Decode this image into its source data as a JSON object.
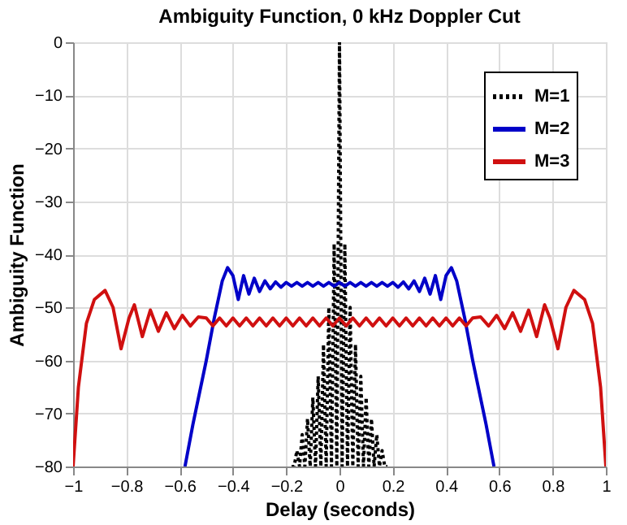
{
  "chart_data": {
    "type": "line",
    "title": "Ambiguity Function, 0 kHz Doppler Cut",
    "xlabel": "Delay (seconds)",
    "ylabel": "Ambiguity Function",
    "xlim": [
      -1,
      1
    ],
    "xticks": [
      -1,
      -0.8,
      -0.6,
      -0.4,
      -0.2,
      0,
      0.2,
      0.4,
      0.6,
      0.8,
      1
    ],
    "ylim": [
      -80,
      0
    ],
    "yticks": [
      -80,
      -70,
      -60,
      -50,
      -40,
      -30,
      -20,
      -10,
      0
    ],
    "grid": true,
    "legend": "top right",
    "series": [
      {
        "name": "M=1",
        "color": "#000000",
        "line_style": "dotted",
        "x": [
          -0.18,
          -0.17,
          -0.16,
          -0.15,
          -0.14,
          -0.13,
          -0.12,
          -0.11,
          -0.1,
          -0.09,
          -0.08,
          -0.07,
          -0.06,
          -0.05,
          -0.04,
          -0.03,
          -0.02,
          -0.01,
          0,
          0.01,
          0.02,
          0.03,
          0.04,
          0.05,
          0.06,
          0.07,
          0.08,
          0.09,
          0.1,
          0.11,
          0.12,
          0.13,
          0.14,
          0.15,
          0.16,
          0.17,
          0.18
        ],
        "values": [
          -80,
          -80,
          -77,
          -80,
          -74,
          -80,
          -71,
          -80,
          -67,
          -80,
          -63,
          -80,
          -57,
          -80,
          -50,
          -80,
          -38,
          -80,
          0,
          -80,
          -38,
          -80,
          -50,
          -80,
          -57,
          -80,
          -63,
          -80,
          -67,
          -80,
          -71,
          -80,
          -74,
          -80,
          -77,
          -80,
          -80
        ]
      },
      {
        "name": "M=2",
        "color": "#0000c8",
        "line_style": "solid",
        "x": [
          -0.58,
          -0.55,
          -0.5,
          -0.47,
          -0.44,
          -0.42,
          -0.4,
          -0.38,
          -0.36,
          -0.34,
          -0.32,
          -0.3,
          -0.28,
          -0.26,
          -0.24,
          -0.22,
          -0.2,
          -0.18,
          -0.16,
          -0.14,
          -0.12,
          -0.1,
          -0.08,
          -0.06,
          -0.04,
          -0.02,
          0,
          0.02,
          0.04,
          0.06,
          0.08,
          0.1,
          0.12,
          0.14,
          0.16,
          0.18,
          0.2,
          0.22,
          0.24,
          0.26,
          0.28,
          0.3,
          0.32,
          0.34,
          0.36,
          0.38,
          0.4,
          0.42,
          0.44,
          0.47,
          0.5,
          0.55,
          0.58
        ],
        "values": [
          -80,
          -72,
          -60,
          -52,
          -45,
          -42.5,
          -44,
          -48.5,
          -44,
          -47.5,
          -44.5,
          -47,
          -45,
          -46.5,
          -45.2,
          -46.2,
          -45.3,
          -46,
          -45.3,
          -46,
          -45.3,
          -46,
          -45.3,
          -46,
          -45.3,
          -46,
          -45.3,
          -46,
          -45.3,
          -46,
          -45.3,
          -46,
          -45.3,
          -46,
          -45.3,
          -46,
          -45.3,
          -46.2,
          -45.2,
          -46.5,
          -45,
          -47,
          -44.5,
          -47.5,
          -44,
          -48.5,
          -44,
          -42.5,
          -45,
          -52,
          -60,
          -72,
          -80
        ]
      },
      {
        "name": "M=3",
        "color": "#d01010",
        "line_style": "solid",
        "x": [
          -1,
          -0.98,
          -0.95,
          -0.92,
          -0.88,
          -0.85,
          -0.82,
          -0.79,
          -0.77,
          -0.74,
          -0.71,
          -0.68,
          -0.65,
          -0.62,
          -0.59,
          -0.56,
          -0.53,
          -0.5,
          -0.475,
          -0.45,
          -0.425,
          -0.4,
          -0.375,
          -0.35,
          -0.325,
          -0.3,
          -0.275,
          -0.25,
          -0.225,
          -0.2,
          -0.175,
          -0.15,
          -0.125,
          -0.1,
          -0.075,
          -0.05,
          -0.025,
          0,
          0.025,
          0.05,
          0.075,
          0.1,
          0.125,
          0.15,
          0.175,
          0.2,
          0.225,
          0.25,
          0.275,
          0.3,
          0.325,
          0.35,
          0.375,
          0.4,
          0.425,
          0.45,
          0.475,
          0.5,
          0.53,
          0.56,
          0.59,
          0.62,
          0.65,
          0.68,
          0.71,
          0.74,
          0.77,
          0.79,
          0.82,
          0.85,
          0.88,
          0.92,
          0.95,
          0.98,
          1
        ],
        "values": [
          -80,
          -65,
          -53,
          -48.5,
          -46.8,
          -50,
          -57.8,
          -52,
          -49.5,
          -55.5,
          -50.5,
          -54.5,
          -51,
          -54,
          -51.5,
          -53.5,
          -51.8,
          -52,
          -53.5,
          -52,
          -53.5,
          -52,
          -53.5,
          -52,
          -53.5,
          -52,
          -53.5,
          -52,
          -53.5,
          -52,
          -53.5,
          -52,
          -53.5,
          -52,
          -53.5,
          -52,
          -53.5,
          -52,
          -53.5,
          -52,
          -53.5,
          -52,
          -53.5,
          -52,
          -53.5,
          -52,
          -53.5,
          -52,
          -53.5,
          -52,
          -53.5,
          -52,
          -53.5,
          -52,
          -53.5,
          -52,
          -53.5,
          -52,
          -51.8,
          -53.5,
          -51.5,
          -54,
          -51,
          -54.5,
          -50.5,
          -55.5,
          -49.5,
          -52,
          -57.8,
          -50,
          -46.8,
          -48.5,
          -53,
          -65,
          -80
        ]
      }
    ]
  }
}
